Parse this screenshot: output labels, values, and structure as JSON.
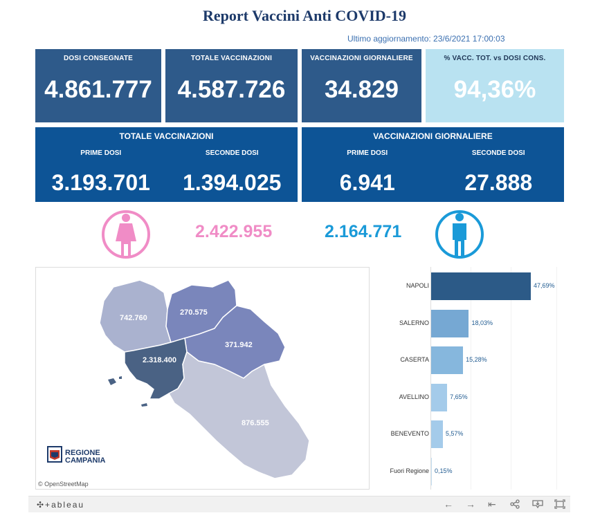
{
  "header": {
    "title": "Report Vaccini Anti COVID-19",
    "updated": "Ultimo aggiornamento: 23/6/2021 17:00:03"
  },
  "kpis": [
    {
      "label": "DOSI CONSEGNATE",
      "value": "4.861.777"
    },
    {
      "label": "TOTALE VACCINAZIONI",
      "value": "4.587.726"
    },
    {
      "label": "VACCINAZIONI GIORNALIERE",
      "value": "34.829"
    },
    {
      "label": "% VACC. TOT. vs DOSI CONS.",
      "value": "94,36%"
    }
  ],
  "totale_panel": {
    "title": "TOTALE VACCINAZIONI",
    "prime_label": "PRIME DOSI",
    "prime_value": "3.193.701",
    "seconde_label": "SECONDE DOSI",
    "seconde_value": "1.394.025"
  },
  "giornaliere_panel": {
    "title": "VACCINAZIONI GIORNALIERE",
    "prime_label": "PRIME DOSI",
    "prime_value": "6.941",
    "seconde_label": "SECONDE DOSI",
    "seconde_value": "27.888"
  },
  "gender": {
    "female_value": "2.422.955",
    "male_value": "2.164.771",
    "female_icon": "female-icon",
    "male_icon": "male-icon",
    "female_color": "#f08cc6",
    "male_color": "#1a9ad8"
  },
  "map": {
    "labels": [
      "742.760",
      "270.575",
      "371.942",
      "2.318.400",
      "876.555"
    ],
    "attribution": "© OpenStreetMap",
    "logo_line1": "REGIONE",
    "logo_line2": "CAMPANIA"
  },
  "chart_data": {
    "type": "bar",
    "orientation": "horizontal",
    "categories": [
      "NAPOLI",
      "SALERNO",
      "CASERTA",
      "AVELLINO",
      "BENEVENTO",
      "Fuori Regione"
    ],
    "values": [
      47.69,
      18.03,
      15.28,
      7.65,
      5.57,
      0.15
    ],
    "labels": [
      "47,69%",
      "18,03%",
      "15,28%",
      "7,65%",
      "5,57%",
      "0,15%"
    ],
    "colors": [
      "#2c5a87",
      "#76a8d3",
      "#86b7dd",
      "#a4cbea",
      "#a4cbea",
      "#c5def2"
    ],
    "xlim": [
      0,
      47.69
    ]
  },
  "footer": {
    "logo": "✣+ableau",
    "controls": [
      "←",
      "→",
      "⇤",
      "share-icon",
      "download-icon",
      "fullscreen-icon"
    ]
  }
}
